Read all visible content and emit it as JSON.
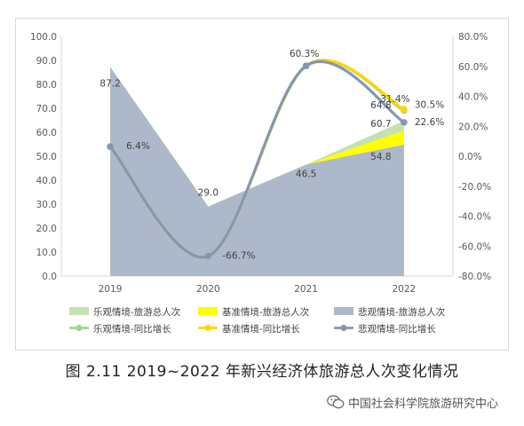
{
  "chart_data": {
    "type": "area",
    "categories": [
      "2019",
      "2020",
      "2021",
      "2022"
    ],
    "series": [
      {
        "name": "乐观情境-旅游总人次",
        "kind": "area",
        "axis": "left",
        "color": "#c6e0b4",
        "values": [
          87.2,
          29.0,
          46.5,
          64.8
        ]
      },
      {
        "name": "基准情境-旅游总人次",
        "kind": "area",
        "axis": "left",
        "color": "#ffff00",
        "values": [
          87.2,
          29.0,
          46.5,
          60.7
        ]
      },
      {
        "name": "悲观情境-旅游总人次",
        "kind": "area",
        "axis": "left",
        "color": "#adb9ca",
        "values": [
          87.2,
          29.0,
          46.5,
          54.8
        ]
      },
      {
        "name": "乐观情境-同比增长",
        "kind": "line",
        "axis": "right",
        "color": "#a9d18e",
        "values": [
          6.4,
          -66.7,
          60.3,
          30.5
        ]
      },
      {
        "name": "基准情境-同比增长",
        "kind": "line",
        "axis": "right",
        "color": "#ffd700",
        "values": [
          6.4,
          -66.7,
          60.3,
          31.4
        ]
      },
      {
        "name": "悲观情境-同比增长",
        "kind": "line",
        "axis": "right",
        "color": "#8497b0",
        "values": [
          6.4,
          -66.7,
          60.3,
          22.6
        ]
      }
    ],
    "y_left": {
      "min": 0,
      "max": 100,
      "step": 10,
      "ticks": [
        "0.0",
        "10.0",
        "20.0",
        "30.0",
        "40.0",
        "50.0",
        "60.0",
        "70.0",
        "80.0",
        "90.0",
        "100.0"
      ]
    },
    "y_right": {
      "min": -80,
      "max": 80,
      "step": 20,
      "ticks": [
        "-80.0%",
        "-60.0%",
        "-40.0%",
        "-20.0%",
        "0.0%",
        "20.0%",
        "40.0%",
        "60.0%",
        "80.0%"
      ]
    },
    "data_labels": [
      {
        "text": "87.2",
        "series": 2,
        "index": 0
      },
      {
        "text": "29.0",
        "series": 2,
        "index": 1
      },
      {
        "text": "46.5",
        "series": 2,
        "index": 2
      },
      {
        "text": "64.8",
        "series": 0,
        "index": 3
      },
      {
        "text": "60.7",
        "series": 1,
        "index": 3
      },
      {
        "text": "54.8",
        "series": 2,
        "index": 3
      },
      {
        "text": "6.4%",
        "series": 5,
        "index": 0
      },
      {
        "text": "-66.7%",
        "series": 5,
        "index": 1
      },
      {
        "text": "60.3%",
        "series": 5,
        "index": 2
      },
      {
        "text": "31.4%",
        "series": 4,
        "index": 3
      },
      {
        "text": "30.5%",
        "series": 3,
        "index": 3
      },
      {
        "text": "22.6%",
        "series": 5,
        "index": 3
      }
    ],
    "legend_position": "bottom",
    "grid": false,
    "title": "图 2.11   2019~2022 年新兴经济体旅游总人次变化情况"
  },
  "watermark": {
    "text": "中国社会科学院旅游研究中心",
    "icon": "wechat-icon"
  }
}
